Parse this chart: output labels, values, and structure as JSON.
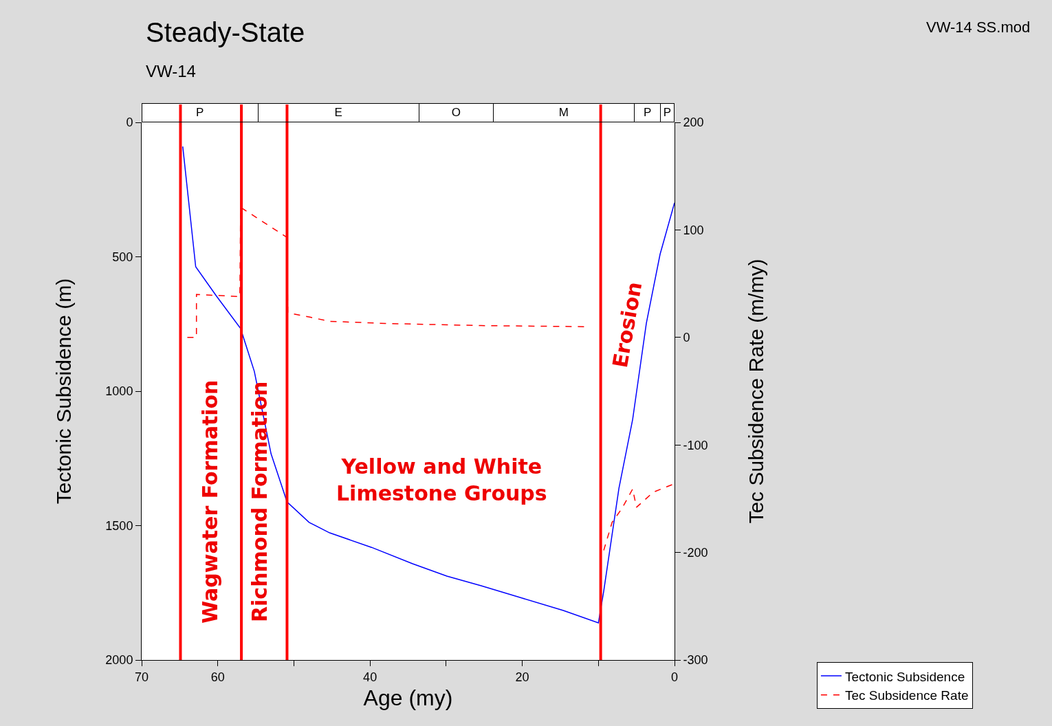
{
  "chart_data": {
    "type": "line",
    "title": "Steady-State",
    "subtitle": "VW-14",
    "xlabel": "Age (my)",
    "ylabel": "Tectonic Subsidence (m)",
    "y2label": "Tec Subsidence Rate (m/my)",
    "xlim": [
      70,
      0
    ],
    "xticks": [
      70,
      {
        "value": 50,
        "label": null
      },
      60,
      40,
      {
        "value": 30,
        "label": null
      },
      20,
      {
        "value": 10,
        "label": null
      },
      0
    ],
    "ylim": [
      2000,
      0
    ],
    "yticks": [
      0,
      500,
      1000,
      1500,
      2000
    ],
    "y2lim": [
      -300,
      200
    ],
    "y2ticks": [
      200,
      100,
      0,
      -100,
      -200,
      -300
    ],
    "grid": false,
    "legend": "bottom right",
    "marker": "none",
    "series": [
      {
        "name": "Tectonic Subsidence",
        "color": "#0000ff",
        "line_style": "solid",
        "x": [
          64.6,
          62.9,
          60.2,
          57.0,
          55.2,
          53.0,
          50.9,
          48.0,
          45.3,
          39.8,
          34.4,
          29.9,
          25.4,
          20.0,
          14.6,
          10.0,
          9.3,
          7.3,
          5.5,
          3.7,
          1.9,
          0
        ],
        "values": [
          90,
          537,
          645,
          767,
          926,
          1233,
          1412,
          1488,
          1527,
          1581,
          1642,
          1688,
          1724,
          1770,
          1816,
          1862,
          1744,
          1361,
          1105,
          747,
          491,
          299
        ]
      },
      {
        "name": "Tec Subsidence Rate",
        "color": "#ff0000",
        "line_style": "dashed",
        "axis": "y2",
        "x": [
          64.0,
          62.8,
          62.8,
          57.1,
          57.0,
          50.9,
          50.8,
          48.0,
          45.3,
          38.0,
          25.4,
          11.8,
          null,
          9.3,
          8.2,
          6.9,
          5.5,
          5.0,
          2.8,
          0
        ],
        "values": [
          0,
          0,
          40,
          38,
          121,
          93,
          23,
          19,
          15,
          13,
          11,
          10,
          null,
          -198,
          -172,
          -159,
          -141,
          -158,
          -144,
          -136
        ]
      }
    ],
    "ref_lines": [
      {
        "axis": "x",
        "value": 64.9,
        "color": "#ff0000"
      },
      {
        "axis": "x",
        "value": 56.9,
        "color": "#ff0000"
      },
      {
        "axis": "x",
        "value": 50.9,
        "color": "#ff0000"
      },
      {
        "axis": "x",
        "value": 9.7,
        "color": "#ff0000"
      }
    ],
    "annotations": [
      "VW-14 SS.mod",
      "Wagwater Formation",
      "Richmond Formation",
      "Yellow and White\nLimestone Groups",
      "Erosion",
      "P",
      "E",
      "O",
      "M",
      "P",
      "P"
    ]
  }
}
